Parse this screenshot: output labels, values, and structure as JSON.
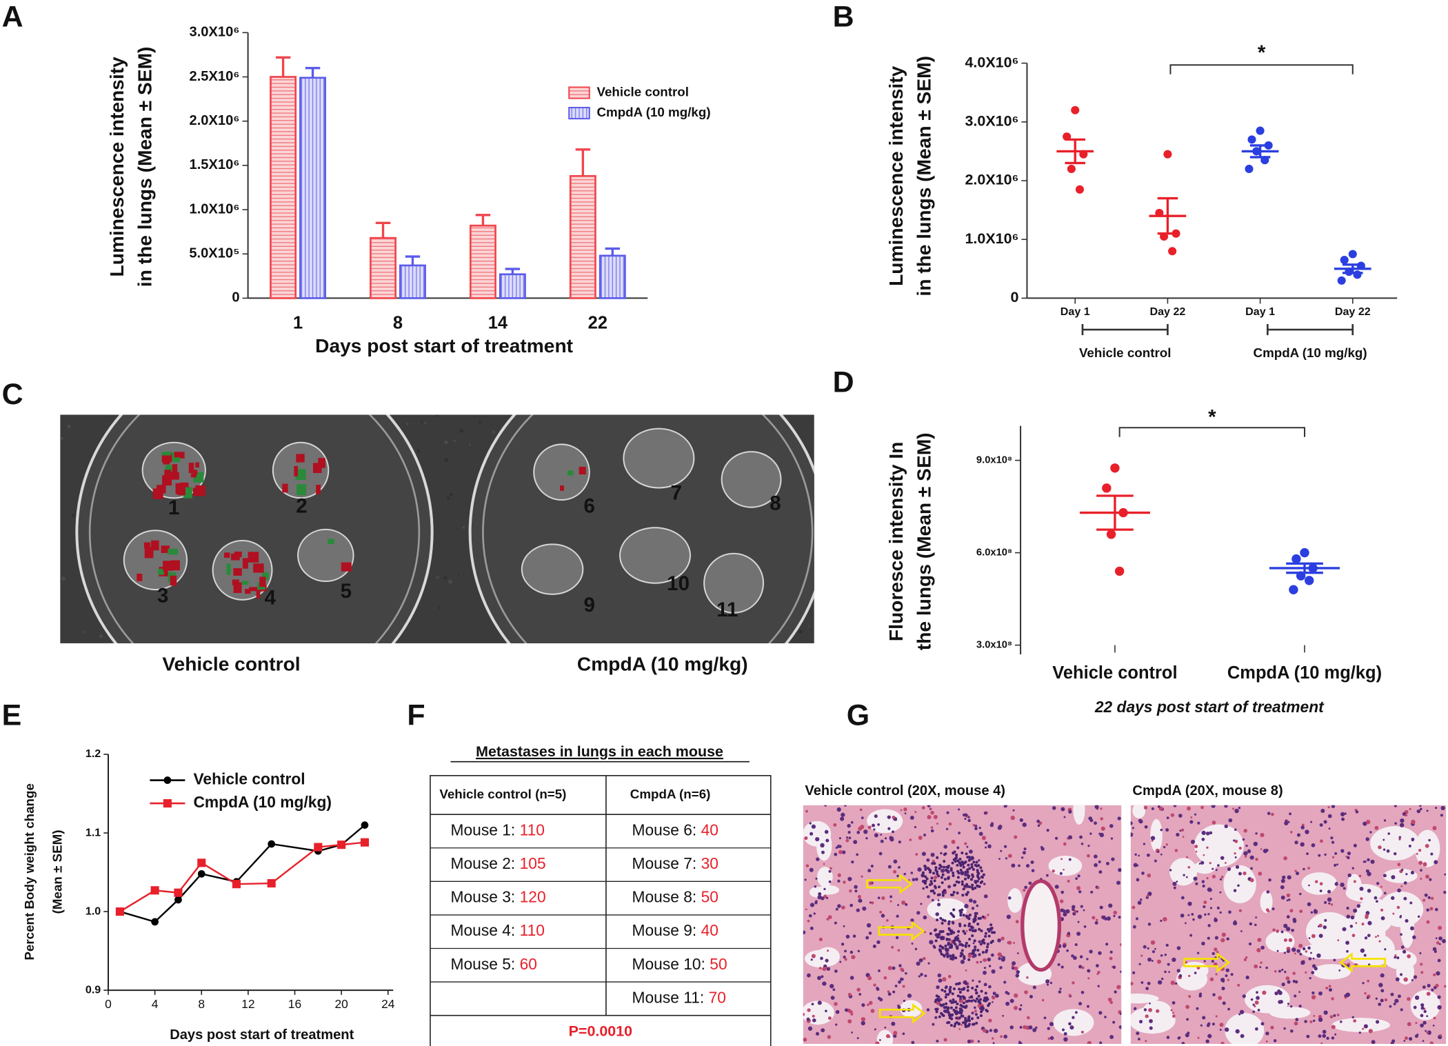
{
  "chart_data": [
    {
      "panel": "A",
      "type": "bar",
      "ylabel": [
        "Luminescence intensity",
        "in the lungs (Mean ± SEM)"
      ],
      "xlabel": "Days post start of treatment",
      "categories": [
        "1",
        "8",
        "14",
        "22"
      ],
      "series": [
        {
          "name": "Vehicle control",
          "color": "#f0454c",
          "values": [
            2500000,
            680000,
            820000,
            1380000
          ],
          "errors": [
            220000,
            170000,
            120000,
            300000
          ]
        },
        {
          "name": "CmpdA (10 mg/kg)",
          "color": "#5b5bea",
          "values": [
            2490000,
            370000,
            270000,
            480000
          ],
          "errors": [
            110000,
            100000,
            60000,
            80000
          ]
        }
      ],
      "ylim": [
        0,
        3000000
      ],
      "yticks": [
        0,
        {
          "value": 500000,
          "label": "5.0X10⁵"
        },
        {
          "value": 1000000,
          "label": "1.0X10⁶"
        },
        {
          "value": 1500000,
          "label": "1.5X10⁶"
        },
        {
          "value": 2000000,
          "label": "2.0X10⁶"
        },
        {
          "value": 2500000,
          "label": "2.5X10⁶"
        },
        {
          "value": 3000000,
          "label": "3.0X10⁶"
        }
      ],
      "legend": "upper right"
    },
    {
      "panel": "B",
      "type": "dot",
      "ylabel": [
        "Luminescence intensity",
        "in the lungs (Mean ± SEM)"
      ],
      "groups": [
        {
          "name": "Vehicle control",
          "color": "#e8202a",
          "columns": [
            {
              "name": "Day 1",
              "points": [
                3200000,
                2750000,
                2450000,
                2200000,
                1850000
              ],
              "mean": 2500000,
              "sem": 200000
            },
            {
              "name": "Day 22",
              "points": [
                2450000,
                1450000,
                1100000,
                1050000,
                800000
              ],
              "mean": 1400000,
              "sem": 300000
            }
          ]
        },
        {
          "name": "CmpdA (10 mg/kg)",
          "color": "#2b3fe0",
          "columns": [
            {
              "name": "Day 1",
              "points": [
                2850000,
                2700000,
                2600000,
                2500000,
                2350000,
                2200000
              ],
              "mean": 2500000,
              "sem": 100000
            },
            {
              "name": "Day 22",
              "points": [
                750000,
                650000,
                550000,
                450000,
                400000,
                300000
              ],
              "mean": 500000,
              "sem": 70000
            }
          ]
        }
      ],
      "significance": "*",
      "ylim": [
        0,
        4000000
      ],
      "yticks": [
        0,
        {
          "value": 1000000,
          "label": "1.0X10⁶"
        },
        {
          "value": 2000000,
          "label": "2.0X10⁶"
        },
        {
          "value": 3000000,
          "label": "3.0X10⁶"
        },
        {
          "value": 4000000,
          "label": "4.0X10⁶"
        }
      ]
    },
    {
      "panel": "D",
      "type": "dot",
      "ylabel": [
        "Fluoresce intensity In",
        "the lungs (Mean ± SEM)"
      ],
      "subtitle": "22 days post start of treatment",
      "groups": [
        {
          "name": "Vehicle control",
          "color": "#e8202a",
          "points": [
            875000000,
            810000000,
            730000000,
            660000000,
            540000000
          ],
          "mean": 730000000,
          "sem": 55000000
        },
        {
          "name": "CmpdA (10 mg/kg)",
          "color": "#2b3fe0",
          "points": [
            600000000,
            580000000,
            550000000,
            525000000,
            510000000,
            480000000
          ],
          "mean": 550000000,
          "sem": 15000000
        }
      ],
      "significance": "*",
      "ylim": [
        300000000,
        1000000000
      ],
      "yticks": [
        {
          "value": 300000000,
          "label": "3.0x10⁸"
        },
        {
          "value": 600000000,
          "label": "6.0x10⁸"
        },
        {
          "value": 900000000,
          "label": "9.0x10⁸"
        }
      ]
    },
    {
      "panel": "E",
      "type": "line",
      "ylabel": [
        "Percent Body weight change",
        "(Mean ± SEM)"
      ],
      "xlabel": "Days post start of treatment",
      "x": [
        1,
        4,
        6,
        8,
        11,
        14,
        18,
        20,
        22
      ],
      "series": [
        {
          "name": "Vehicle control",
          "color": "#000000",
          "marker": "circle",
          "values": [
            1.0,
            0.987,
            1.015,
            1.048,
            1.038,
            1.086,
            1.077,
            1.085,
            1.11
          ]
        },
        {
          "name": "CmpdA (10 mg/kg)",
          "color": "#e8202a",
          "marker": "square",
          "values": [
            1.0,
            1.027,
            1.024,
            1.062,
            1.035,
            1.036,
            1.082,
            1.085,
            1.088
          ]
        }
      ],
      "xlim": [
        0,
        25
      ],
      "xticks": [
        0,
        4,
        8,
        12,
        16,
        20,
        24
      ],
      "ylim": [
        0.9,
        1.2
      ],
      "yticks": [
        0.9,
        {
          "value": 1.0,
          "label": "1.0"
        },
        1.1,
        1.2
      ],
      "legend": "upper left"
    }
  ],
  "panel_c": {
    "panel": "C",
    "mouse_labels": [
      "1",
      "2",
      "3",
      "4",
      "5",
      "6",
      "7",
      "8",
      "9",
      "10",
      "11"
    ],
    "captions": [
      "Vehicle control",
      "CmpdA (10 mg/kg)"
    ]
  },
  "table_f": {
    "panel": "F",
    "title": "Metastases in lungs in each mouse",
    "columns": [
      {
        "header": "Vehicle control (n=5)",
        "mice": [
          {
            "label": "Mouse 1:",
            "count": 110
          },
          {
            "label": "Mouse 2:",
            "count": 105
          },
          {
            "label": "Mouse 3:",
            "count": 120
          },
          {
            "label": "Mouse 4:",
            "count": 110
          },
          {
            "label": "Mouse 5:",
            "count": 60
          }
        ]
      },
      {
        "header": "CmpdA (n=6)",
        "mice": [
          {
            "label": "Mouse 6:",
            "count": 40
          },
          {
            "label": "Mouse 7:",
            "count": 30
          },
          {
            "label": "Mouse 8:",
            "count": 50
          },
          {
            "label": "Mouse 9:",
            "count": 40
          },
          {
            "label": "Mouse 10:",
            "count": 50
          },
          {
            "label": "Mouse 11:",
            "count": 70
          }
        ]
      }
    ],
    "footer": "P=0.0010"
  },
  "panel_g": {
    "panel": "G",
    "captions": [
      "Vehicle control (20X, mouse 4)",
      "CmpdA (20X, mouse 8)"
    ]
  }
}
